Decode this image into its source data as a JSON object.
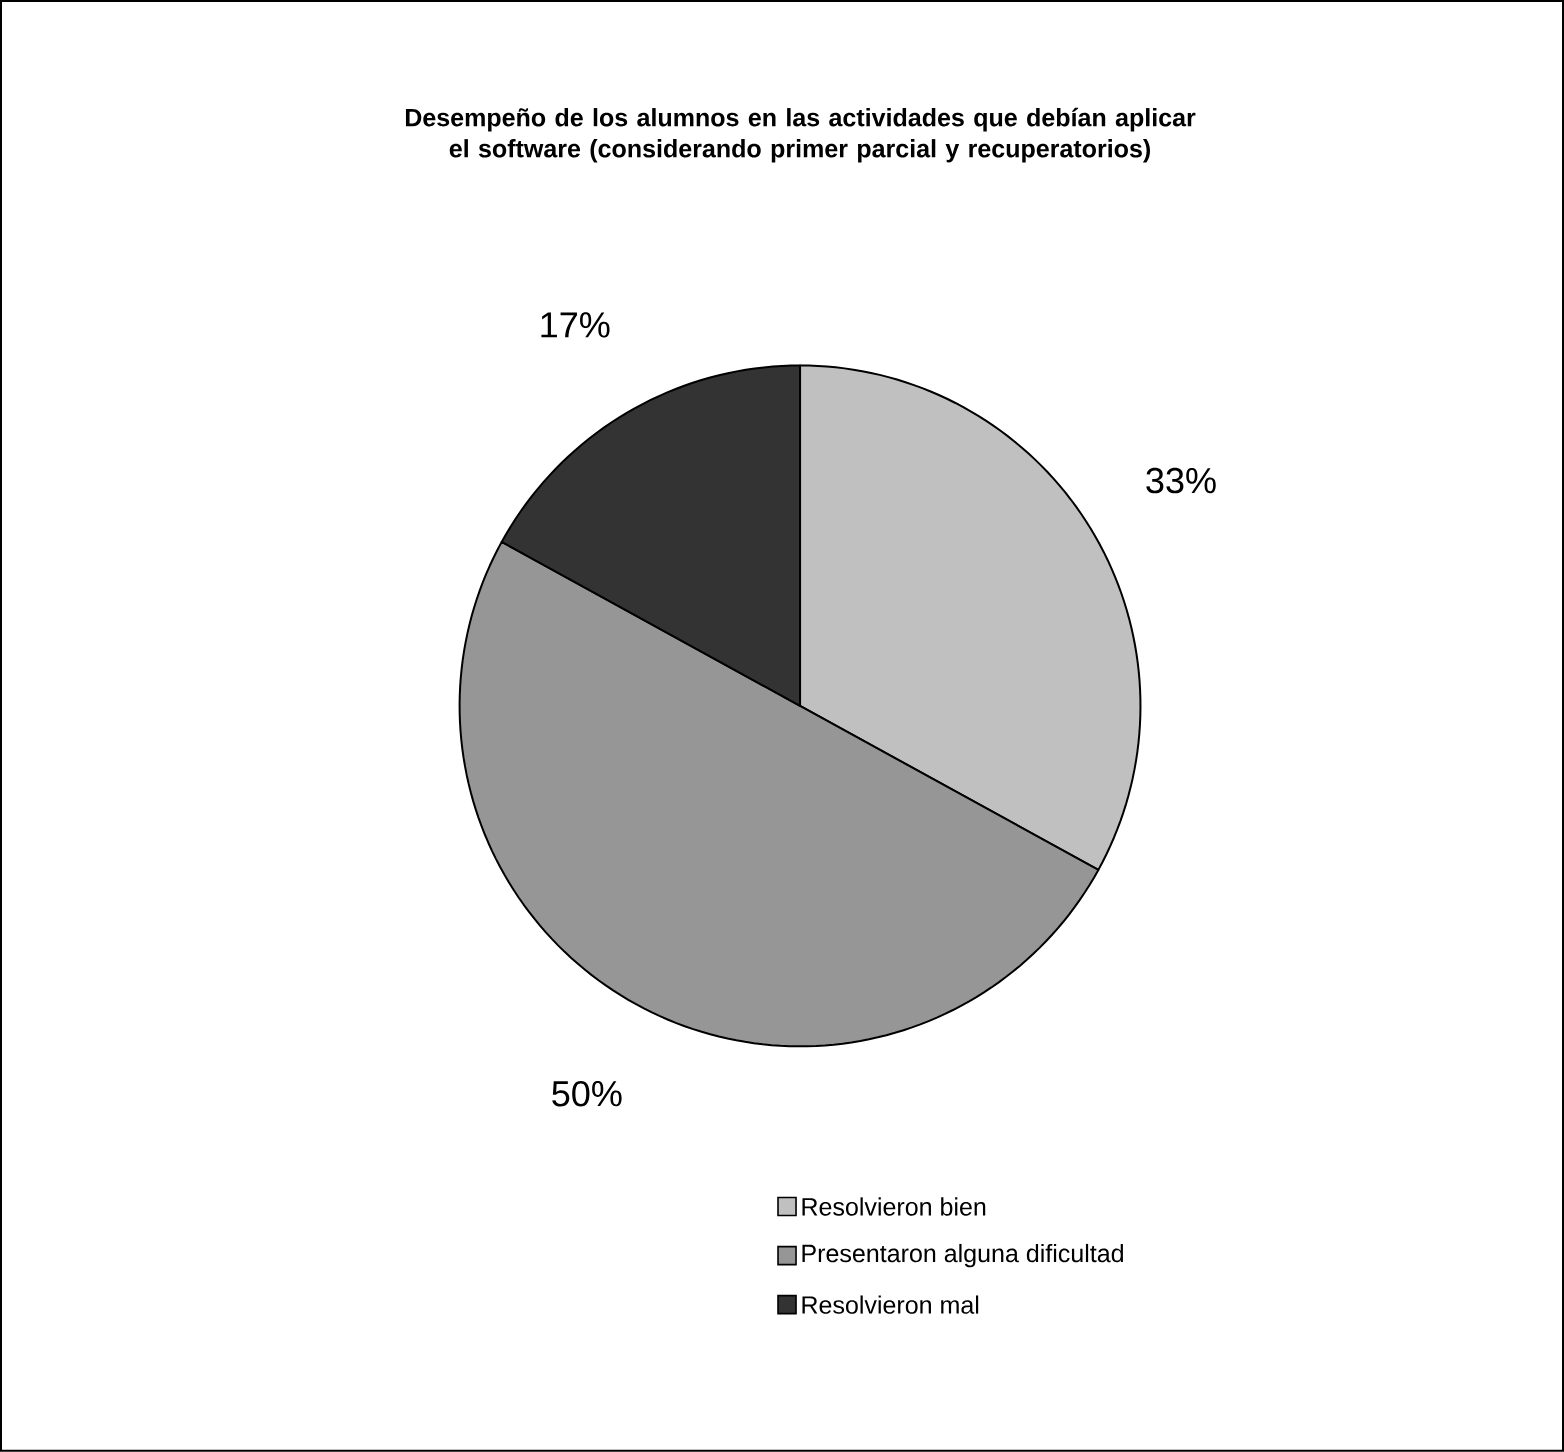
{
  "chart_data": {
    "type": "pie",
    "title": "Desempeño de los alumnos en las actividades que debían aplicar el software (considerando primer parcial y recuperatorios)",
    "categories": [
      "Resolvieron bien",
      "Presentaron alguna dificultad",
      "Resolvieron mal"
    ],
    "values": [
      33,
      50,
      17
    ],
    "value_labels": [
      "33%",
      "50%",
      "17%"
    ],
    "colors": [
      "#c0c0c0",
      "#969696",
      "#333333"
    ],
    "legend": "bottom"
  }
}
